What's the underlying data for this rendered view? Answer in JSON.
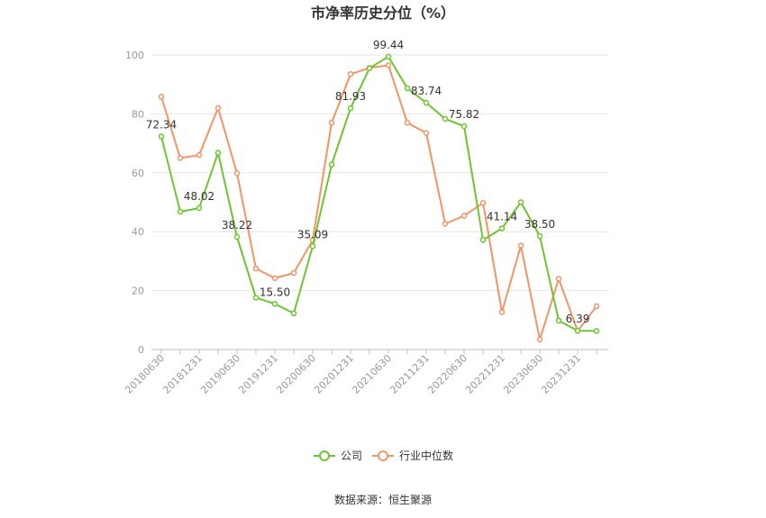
{
  "chart_data": {
    "type": "line",
    "title": "市净率历史分位（%）",
    "x": [
      "20180630",
      "20180930",
      "20181231",
      "20190331",
      "20190630",
      "20190930",
      "20191231",
      "20200331",
      "20200630",
      "20200930",
      "20201231",
      "20210331",
      "20210630",
      "20210930",
      "20211231",
      "20220331",
      "20220630",
      "20220930",
      "20221231",
      "20230331",
      "20230630",
      "20230930",
      "20231231",
      "20240331"
    ],
    "x_tick_labels": [
      "20180630",
      "20181231",
      "20190630",
      "20191231",
      "20200630",
      "20201231",
      "20210630",
      "20211231",
      "20220630",
      "20221231",
      "20230630",
      "20231231"
    ],
    "ylim": [
      0,
      100
    ],
    "y_ticks": [
      0,
      20,
      40,
      60,
      80,
      100
    ],
    "grid": true,
    "legend": "bottom-center",
    "series": [
      {
        "name": "公司",
        "color": "#6cc72e",
        "values": [
          72.34,
          46.8,
          48.02,
          66.8,
          38.22,
          17.6,
          15.5,
          12.3,
          35.09,
          62.8,
          81.93,
          95.5,
          99.44,
          88.7,
          83.74,
          78.3,
          75.82,
          37.2,
          41.14,
          50.0,
          38.5,
          9.8,
          6.39,
          6.3
        ],
        "labels": {
          "0": "72.34",
          "2": "48.02",
          "4": "38.22",
          "6": "15.50",
          "8": "35.09",
          "10": "81.93",
          "12": "99.44",
          "14": "83.74",
          "16": "75.82",
          "18": "41.14",
          "20": "38.50",
          "22": "6.39"
        }
      },
      {
        "name": "行业中位数",
        "color": "#f49465",
        "values": [
          85.8,
          65.0,
          66.0,
          82.0,
          59.8,
          27.5,
          24.2,
          26.0,
          37.2,
          77.0,
          93.5,
          95.6,
          96.5,
          77.0,
          73.5,
          42.7,
          45.4,
          49.8,
          12.7,
          35.3,
          3.4,
          24.0,
          6.3,
          14.7
        ]
      }
    ]
  },
  "source": "数据来源：恒生聚源"
}
